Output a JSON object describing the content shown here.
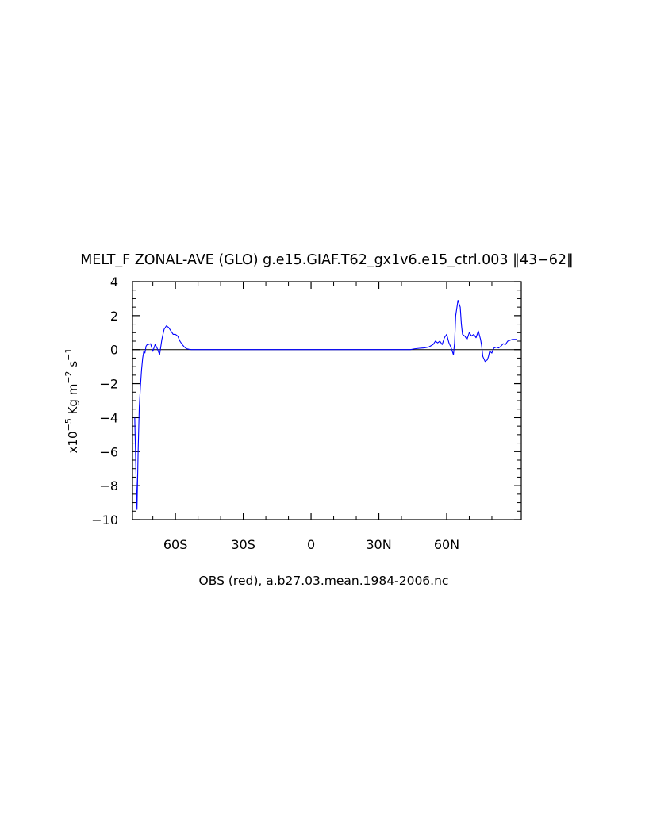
{
  "chart_data": {
    "type": "line",
    "title": "MELT_F ZONAL-AVE (GLO) g.e15.GIAF.T62_gx1v6.e15_ctrl.003 ‖43−62‖",
    "xlabel": "OBS (red), a.b27.03.mean.1984-2006.nc",
    "ylabel": {
      "prefix": "x10",
      "exponent": "−5",
      "unit_1": " Kg m",
      "unit_1_exponent": "−2",
      "unit_2": " s",
      "unit_2_exponent": "−1"
    },
    "xlim": [
      -79,
      93
    ],
    "ylim": [
      -10,
      4
    ],
    "x_ticks": [
      {
        "value": -60,
        "label": "60S"
      },
      {
        "value": -30,
        "label": "30S"
      },
      {
        "value": 0,
        "label": "0"
      },
      {
        "value": 30,
        "label": "30N"
      },
      {
        "value": 60,
        "label": "60N"
      }
    ],
    "y_ticks": [
      {
        "value": 4,
        "label": "4"
      },
      {
        "value": 2,
        "label": "2"
      },
      {
        "value": 0,
        "label": "0"
      },
      {
        "value": -2,
        "label": "−2"
      },
      {
        "value": -4,
        "label": "−4"
      },
      {
        "value": -6,
        "label": "−6"
      },
      {
        "value": -8,
        "label": "−8"
      },
      {
        "value": -10,
        "label": "−10"
      }
    ],
    "zero_line": true,
    "grid": false,
    "series": [
      {
        "color": "#0000ff",
        "x": [
          -78,
          -77.5,
          -77,
          -76.5,
          -76,
          -75.5,
          -75,
          -74.5,
          -74,
          -73.5,
          -73,
          -72.5,
          -72,
          -71,
          -70,
          -69,
          -68.5,
          -68,
          -67,
          -66,
          -65.5,
          -65,
          -64,
          -63,
          -62,
          -61,
          -60,
          -59,
          -58,
          -57,
          -56,
          -55,
          -54,
          -53,
          -52,
          -51,
          -50,
          -45,
          -40,
          -30,
          -20,
          -10,
          0,
          10,
          20,
          30,
          40,
          44,
          46,
          48,
          50,
          52,
          54,
          55,
          56,
          57,
          58,
          59,
          60,
          61,
          62,
          63,
          63.5,
          64,
          65,
          66,
          66.5,
          67,
          68,
          69,
          70,
          71,
          72,
          73,
          74,
          75,
          75.5,
          76,
          77,
          78,
          78.5,
          79,
          80,
          80.5,
          81,
          82,
          83,
          84,
          85,
          86,
          87,
          88,
          89,
          90,
          91
        ],
        "y": [
          -4.0,
          -7.0,
          -9.4,
          -6.0,
          -3.4,
          -2.2,
          -1.2,
          -0.5,
          -0.1,
          -0.2,
          0.2,
          0.3,
          0.3,
          0.35,
          -0.1,
          0.3,
          0.2,
          0.05,
          -0.3,
          0.6,
          0.9,
          1.2,
          1.4,
          1.3,
          1.1,
          0.9,
          0.9,
          0.8,
          0.5,
          0.3,
          0.15,
          0.05,
          0.02,
          0.0,
          0.0,
          0.0,
          0.0,
          0.0,
          0.0,
          0.0,
          0.0,
          0.0,
          0.0,
          0.0,
          0.0,
          0.0,
          0.0,
          0.0,
          0.05,
          0.08,
          0.1,
          0.15,
          0.3,
          0.5,
          0.4,
          0.5,
          0.3,
          0.7,
          0.9,
          0.4,
          0.1,
          -0.3,
          0.4,
          2.0,
          2.9,
          2.5,
          1.5,
          0.9,
          0.8,
          0.6,
          1.0,
          0.8,
          0.9,
          0.7,
          1.1,
          0.6,
          0.2,
          -0.4,
          -0.7,
          -0.6,
          -0.4,
          -0.1,
          -0.2,
          0.0,
          0.1,
          0.15,
          0.1,
          0.2,
          0.35,
          0.3,
          0.5,
          0.55,
          0.6,
          0.6,
          0.6
        ]
      }
    ]
  }
}
